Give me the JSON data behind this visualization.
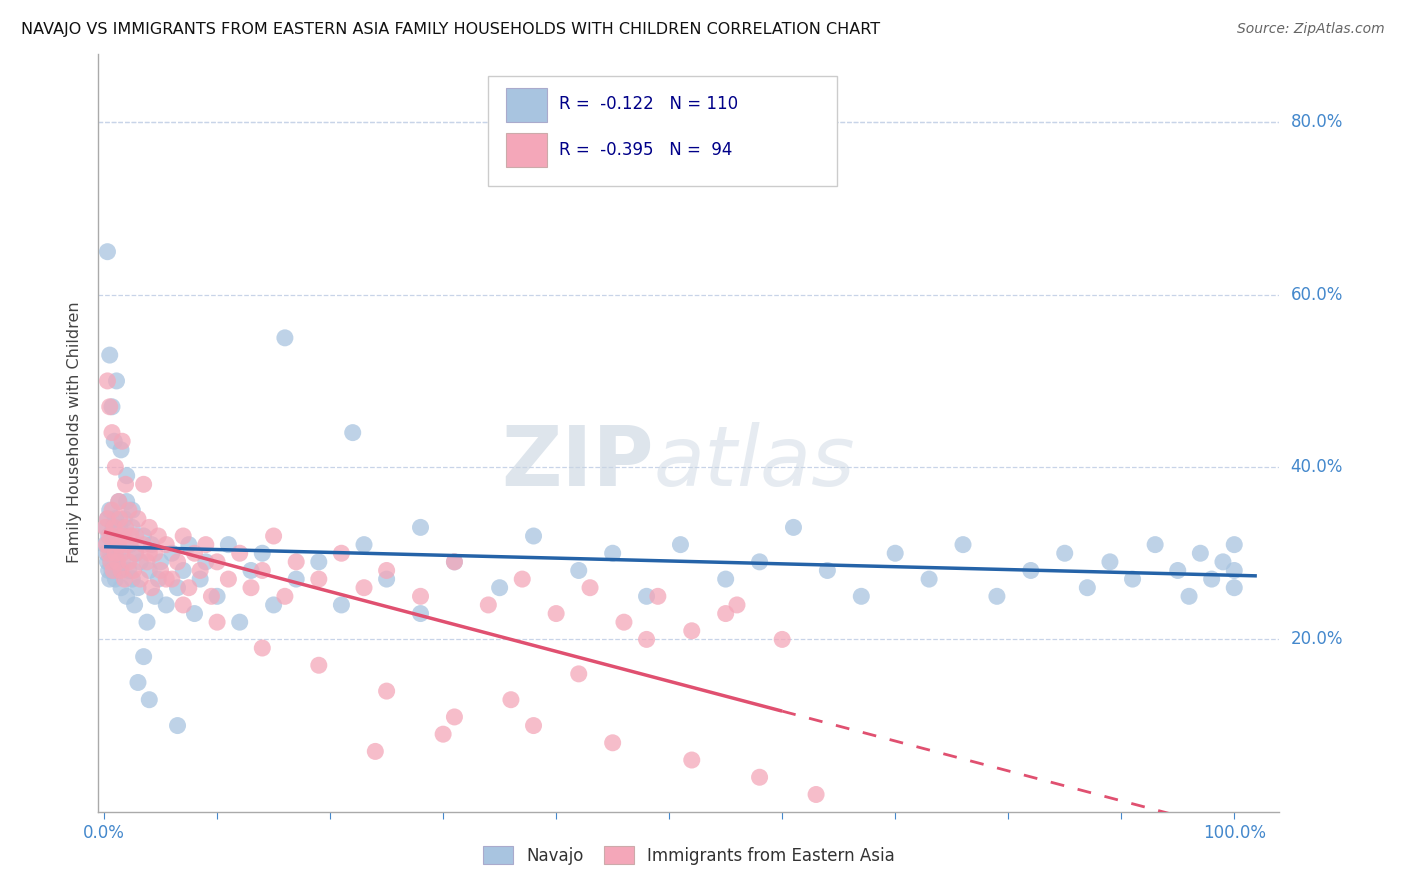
{
  "title": "NAVAJO VS IMMIGRANTS FROM EASTERN ASIA FAMILY HOUSEHOLDS WITH CHILDREN CORRELATION CHART",
  "source": "Source: ZipAtlas.com",
  "ylabel": "Family Households with Children",
  "legend_label1": "Navajo",
  "legend_label2": "Immigrants from Eastern Asia",
  "navajo_R": "-0.122",
  "navajo_N": "110",
  "immigrants_R": "-0.395",
  "immigrants_N": "94",
  "navajo_color": "#a8c4e0",
  "immigrants_color": "#f4a7b9",
  "navajo_line_color": "#2563a8",
  "immigrants_line_color": "#e05070",
  "background_color": "#ffffff",
  "grid_color": "#c8d4e8",
  "axis_color": "#4488cc",
  "watermark1": "ZIP",
  "watermark2": "atlas",
  "ylim_min": 0.0,
  "ylim_max": 0.88,
  "xlim_min": -0.005,
  "xlim_max": 1.04,
  "navajo_x": [
    0.001,
    0.002,
    0.002,
    0.003,
    0.003,
    0.004,
    0.004,
    0.005,
    0.005,
    0.006,
    0.006,
    0.007,
    0.007,
    0.008,
    0.008,
    0.009,
    0.01,
    0.01,
    0.011,
    0.012,
    0.013,
    0.014,
    0.015,
    0.015,
    0.016,
    0.017,
    0.018,
    0.02,
    0.02,
    0.022,
    0.023,
    0.025,
    0.025,
    0.027,
    0.028,
    0.03,
    0.032,
    0.035,
    0.038,
    0.04,
    0.042,
    0.045,
    0.048,
    0.05,
    0.055,
    0.06,
    0.065,
    0.07,
    0.075,
    0.08,
    0.085,
    0.09,
    0.1,
    0.11,
    0.12,
    0.13,
    0.14,
    0.15,
    0.17,
    0.19,
    0.21,
    0.23,
    0.25,
    0.28,
    0.31,
    0.35,
    0.38,
    0.42,
    0.45,
    0.48,
    0.51,
    0.55,
    0.58,
    0.61,
    0.64,
    0.67,
    0.7,
    0.73,
    0.76,
    0.79,
    0.82,
    0.85,
    0.87,
    0.89,
    0.91,
    0.93,
    0.95,
    0.96,
    0.97,
    0.98,
    0.99,
    1.0,
    1.0,
    1.0,
    0.003,
    0.005,
    0.007,
    0.009,
    0.011,
    0.013,
    0.015,
    0.02,
    0.025,
    0.03,
    0.035,
    0.04,
    0.065,
    0.16,
    0.22,
    0.28
  ],
  "navajo_y": [
    0.31,
    0.3,
    0.33,
    0.29,
    0.34,
    0.28,
    0.32,
    0.27,
    0.35,
    0.3,
    0.29,
    0.32,
    0.28,
    0.33,
    0.31,
    0.3,
    0.27,
    0.34,
    0.29,
    0.31,
    0.28,
    0.33,
    0.3,
    0.26,
    0.32,
    0.29,
    0.34,
    0.25,
    0.36,
    0.28,
    0.31,
    0.27,
    0.33,
    0.24,
    0.3,
    0.26,
    0.29,
    0.32,
    0.22,
    0.28,
    0.31,
    0.25,
    0.27,
    0.29,
    0.24,
    0.3,
    0.26,
    0.28,
    0.31,
    0.23,
    0.27,
    0.29,
    0.25,
    0.31,
    0.22,
    0.28,
    0.3,
    0.24,
    0.27,
    0.29,
    0.24,
    0.31,
    0.27,
    0.23,
    0.29,
    0.26,
    0.32,
    0.28,
    0.3,
    0.25,
    0.31,
    0.27,
    0.29,
    0.33,
    0.28,
    0.25,
    0.3,
    0.27,
    0.31,
    0.25,
    0.28,
    0.3,
    0.26,
    0.29,
    0.27,
    0.31,
    0.28,
    0.25,
    0.3,
    0.27,
    0.29,
    0.26,
    0.28,
    0.31,
    0.65,
    0.53,
    0.47,
    0.43,
    0.5,
    0.36,
    0.42,
    0.39,
    0.35,
    0.15,
    0.18,
    0.13,
    0.1,
    0.55,
    0.44,
    0.33
  ],
  "immigrants_x": [
    0.001,
    0.002,
    0.003,
    0.004,
    0.005,
    0.006,
    0.007,
    0.008,
    0.009,
    0.01,
    0.011,
    0.012,
    0.013,
    0.014,
    0.015,
    0.016,
    0.017,
    0.018,
    0.019,
    0.02,
    0.022,
    0.024,
    0.026,
    0.028,
    0.03,
    0.032,
    0.035,
    0.038,
    0.04,
    0.042,
    0.045,
    0.048,
    0.05,
    0.055,
    0.06,
    0.065,
    0.07,
    0.075,
    0.08,
    0.085,
    0.09,
    0.095,
    0.1,
    0.11,
    0.12,
    0.13,
    0.14,
    0.15,
    0.16,
    0.17,
    0.19,
    0.21,
    0.23,
    0.25,
    0.28,
    0.31,
    0.34,
    0.37,
    0.4,
    0.43,
    0.46,
    0.49,
    0.52,
    0.56,
    0.6,
    0.003,
    0.005,
    0.007,
    0.01,
    0.013,
    0.016,
    0.019,
    0.022,
    0.028,
    0.035,
    0.04,
    0.055,
    0.07,
    0.1,
    0.14,
    0.19,
    0.25,
    0.31,
    0.38,
    0.45,
    0.52,
    0.58,
    0.63,
    0.55,
    0.48,
    0.42,
    0.36,
    0.3,
    0.24
  ],
  "immigrants_y": [
    0.33,
    0.31,
    0.34,
    0.3,
    0.32,
    0.29,
    0.35,
    0.28,
    0.33,
    0.3,
    0.32,
    0.29,
    0.31,
    0.34,
    0.28,
    0.3,
    0.32,
    0.27,
    0.33,
    0.31,
    0.29,
    0.32,
    0.28,
    0.3,
    0.34,
    0.27,
    0.31,
    0.29,
    0.33,
    0.26,
    0.3,
    0.32,
    0.28,
    0.31,
    0.27,
    0.29,
    0.32,
    0.26,
    0.3,
    0.28,
    0.31,
    0.25,
    0.29,
    0.27,
    0.3,
    0.26,
    0.28,
    0.32,
    0.25,
    0.29,
    0.27,
    0.3,
    0.26,
    0.28,
    0.25,
    0.29,
    0.24,
    0.27,
    0.23,
    0.26,
    0.22,
    0.25,
    0.21,
    0.24,
    0.2,
    0.5,
    0.47,
    0.44,
    0.4,
    0.36,
    0.43,
    0.38,
    0.35,
    0.32,
    0.38,
    0.3,
    0.27,
    0.24,
    0.22,
    0.19,
    0.17,
    0.14,
    0.11,
    0.1,
    0.08,
    0.06,
    0.04,
    0.02,
    0.23,
    0.2,
    0.16,
    0.13,
    0.09,
    0.07
  ]
}
